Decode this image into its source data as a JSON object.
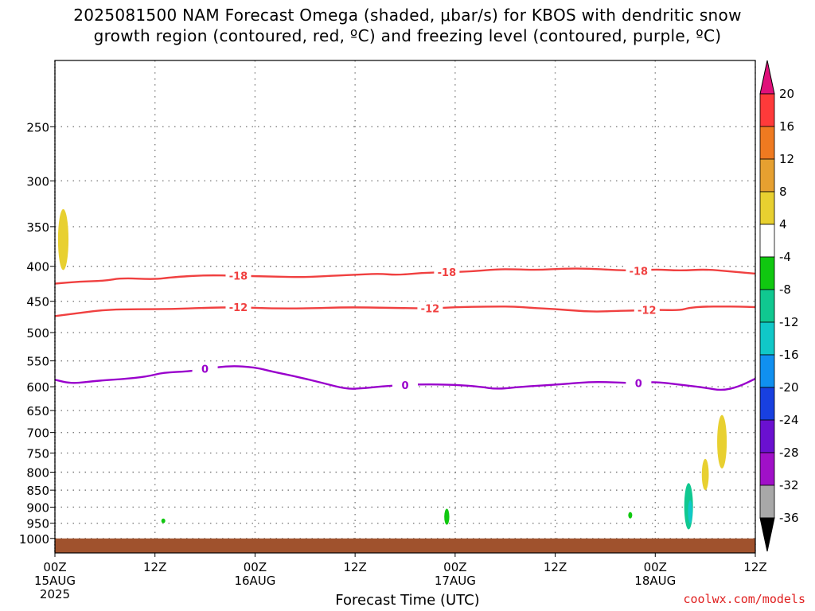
{
  "title": {
    "line1": "2025081500 NAM Forecast Omega (shaded, μbar/s) for KBOS with dendritic snow",
    "line2": "growth region (contoured, red, ºC) and freezing level (contoured, purple, ºC)"
  },
  "xlabel": "Forecast Time (UTC)",
  "credit": "coolwx.com/models",
  "colors": {
    "red_contour": "#f04040",
    "purple_contour": "#9900cc",
    "ground": "#a0522d",
    "grid": "#808080"
  },
  "chart_data": {
    "type": "heatmap",
    "x_ticks": [
      {
        "line1": "00Z",
        "line2": "15AUG",
        "line3": "2025",
        "hour": 0
      },
      {
        "line1": "12Z",
        "line2": "",
        "line3": "",
        "hour": 12
      },
      {
        "line1": "00Z",
        "line2": "16AUG",
        "line3": "",
        "hour": 24
      },
      {
        "line1": "12Z",
        "line2": "",
        "line3": "",
        "hour": 36
      },
      {
        "line1": "00Z",
        "line2": "17AUG",
        "line3": "",
        "hour": 48
      },
      {
        "line1": "12Z",
        "line2": "",
        "line3": "",
        "hour": 60
      },
      {
        "line1": "00Z",
        "line2": "18AUG",
        "line3": "",
        "hour": 72
      },
      {
        "line1": "12Z",
        "line2": "",
        "line3": "",
        "hour": 84
      }
    ],
    "x_range_hours": [
      0,
      84
    ],
    "y_ticks": [
      250,
      300,
      350,
      400,
      450,
      500,
      550,
      600,
      650,
      700,
      750,
      800,
      850,
      900,
      950,
      1000
    ],
    "y_range_hPa": [
      200,
      1050
    ],
    "y_scale": "log",
    "colorbar": {
      "labels": [
        "20",
        "16",
        "12",
        "8",
        "4",
        "-4",
        "-8",
        "-12",
        "-16",
        "-20",
        "-24",
        "-28",
        "-32",
        "-36"
      ],
      "colors": [
        "#ff3a3a",
        "#ef7a20",
        "#e6a030",
        "#e8d030",
        "#ffffff",
        "#10c810",
        "#10c890",
        "#10c8c8",
        "#1090f0",
        "#1840e0",
        "#6a10d0",
        "#a010c8",
        "#a8a8a8"
      ],
      "top_arrow_color": "#e0107a",
      "bottom_arrow_color": "#000000"
    },
    "contours": [
      {
        "label": "-18",
        "color": "red",
        "points": [
          [
            0,
            424
          ],
          [
            3,
            421
          ],
          [
            6,
            420
          ],
          [
            8,
            416
          ],
          [
            12,
            418
          ],
          [
            14,
            415
          ],
          [
            18,
            412
          ],
          [
            22,
            413
          ],
          [
            26,
            414
          ],
          [
            30,
            415
          ],
          [
            33,
            413
          ],
          [
            37,
            411
          ],
          [
            39,
            410
          ],
          [
            41,
            412
          ],
          [
            44,
            409
          ],
          [
            47,
            408
          ],
          [
            50,
            407
          ],
          [
            53,
            404
          ],
          [
            55,
            404
          ],
          [
            58,
            405
          ],
          [
            61,
            403
          ],
          [
            64,
            403
          ],
          [
            67,
            405
          ],
          [
            70,
            406
          ],
          [
            72,
            404
          ],
          [
            75,
            406
          ],
          [
            78,
            404
          ],
          [
            81,
            407
          ],
          [
            84,
            410
          ]
        ],
        "labels_at": [
          22,
          47,
          70
        ]
      },
      {
        "label": "-12",
        "color": "red",
        "points": [
          [
            0,
            473
          ],
          [
            3,
            468
          ],
          [
            6,
            463
          ],
          [
            10,
            462
          ],
          [
            14,
            462
          ],
          [
            18,
            460
          ],
          [
            22,
            459
          ],
          [
            26,
            461
          ],
          [
            30,
            461
          ],
          [
            35,
            459
          ],
          [
            40,
            460
          ],
          [
            45,
            461
          ],
          [
            48,
            459
          ],
          [
            52,
            458
          ],
          [
            55,
            458
          ],
          [
            57,
            460
          ],
          [
            60,
            462
          ],
          [
            63,
            465
          ],
          [
            65,
            466
          ],
          [
            67,
            465
          ],
          [
            70,
            464
          ],
          [
            72,
            463
          ],
          [
            75,
            464
          ],
          [
            76,
            460
          ],
          [
            78,
            458
          ],
          [
            80,
            458
          ],
          [
            82,
            458
          ],
          [
            84,
            459
          ]
        ],
        "labels_at": [
          22,
          45,
          71
        ]
      },
      {
        "label": "0",
        "color": "purple",
        "points": [
          [
            0,
            586
          ],
          [
            2,
            594
          ],
          [
            5,
            588
          ],
          [
            8,
            585
          ],
          [
            11,
            580
          ],
          [
            13,
            572
          ],
          [
            16,
            570
          ],
          [
            18,
            565
          ],
          [
            21,
            559
          ],
          [
            24,
            562
          ],
          [
            26,
            570
          ],
          [
            29,
            580
          ],
          [
            32,
            592
          ],
          [
            35,
            605
          ],
          [
            37,
            603
          ],
          [
            40,
            598
          ],
          [
            44,
            595
          ],
          [
            48,
            596
          ],
          [
            51,
            600
          ],
          [
            53,
            605
          ],
          [
            56,
            600
          ],
          [
            60,
            596
          ],
          [
            63,
            592
          ],
          [
            65,
            590
          ],
          [
            68,
            592
          ],
          [
            70,
            593
          ],
          [
            72,
            590
          ],
          [
            75,
            596
          ],
          [
            78,
            602
          ],
          [
            80,
            608
          ],
          [
            82,
            600
          ],
          [
            84,
            584
          ]
        ],
        "labels_at": [
          18,
          42,
          70
        ]
      }
    ],
    "shaded_features": [
      {
        "value_range": "4 to 8",
        "hour": 1,
        "p_top": 330,
        "p_bottom": 405
      },
      {
        "value_range": "-4 to -8",
        "hour": 13,
        "p_top": 935,
        "p_bottom": 950
      },
      {
        "value_range": "-4 to -8",
        "hour": 47,
        "p_top": 905,
        "p_bottom": 955
      },
      {
        "value_range": "-4 to -8",
        "hour": 69,
        "p_top": 915,
        "p_bottom": 935
      },
      {
        "value_range": "-4 to -12",
        "hour": 76,
        "p_top": 830,
        "p_bottom": 970
      },
      {
        "value_range": "4 to 8",
        "hour": 78,
        "p_top": 765,
        "p_bottom": 850
      },
      {
        "value_range": "4 to 8",
        "hour": 80,
        "p_top": 660,
        "p_bottom": 790
      }
    ],
    "ground": {
      "p_top_range": [
        1000,
        1008
      ]
    }
  }
}
